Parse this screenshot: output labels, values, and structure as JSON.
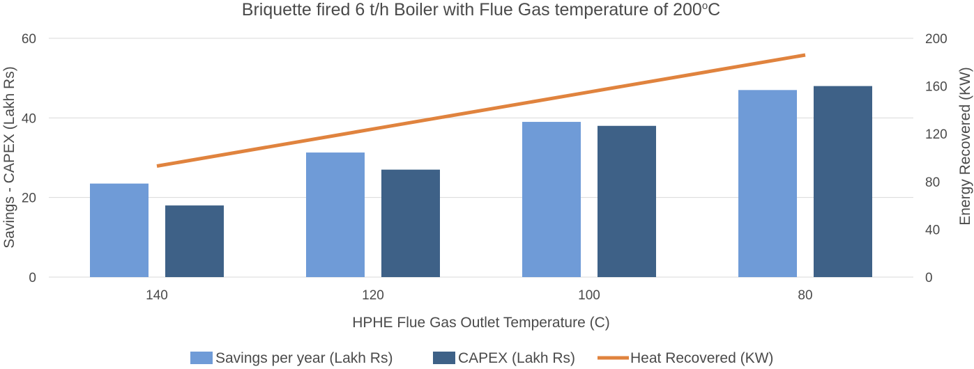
{
  "chart_data": {
    "type": "bar",
    "title": "Briquette fired 6 t/h Boiler with Flue Gas temperature of 200",
    "title_superscript": "o",
    "title_suffix": "C",
    "xlabel": "HPHE Flue Gas Outlet Temperature (C)",
    "ylabel_left": "Savings - CAPEX (Lakh Rs)",
    "ylabel_right": "Energy Recovered (KW)",
    "categories": [
      "140",
      "120",
      "100",
      "80"
    ],
    "ylim_left": [
      0,
      60
    ],
    "yticks_left": [
      "0",
      "20",
      "40",
      "60"
    ],
    "ylim_right": [
      0,
      200
    ],
    "yticks_right": [
      "0",
      "40",
      "80",
      "120",
      "160",
      "200"
    ],
    "grid": true,
    "legend_position": "bottom",
    "series": [
      {
        "name": "Savings per year (Lakh Rs)",
        "type": "bar",
        "axis": "left",
        "color": "#6f9bd7",
        "values": [
          23.5,
          31.3,
          39,
          47
        ]
      },
      {
        "name": "CAPEX (Lakh Rs)",
        "type": "bar",
        "axis": "left",
        "color": "#3e6187",
        "values": [
          18,
          27,
          38,
          48
        ]
      },
      {
        "name": "Heat Recovered (KW)",
        "type": "line",
        "axis": "right",
        "color": "#e0833e",
        "values": [
          93,
          124,
          155,
          186
        ]
      }
    ]
  }
}
